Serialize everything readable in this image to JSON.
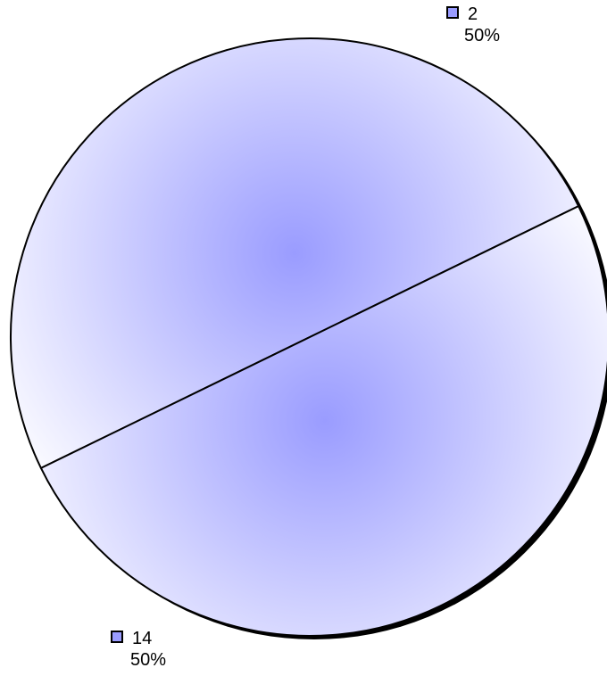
{
  "chart_data": {
    "type": "pie",
    "title": "",
    "slices": [
      {
        "label": "2",
        "value": 50,
        "percent_label": "50%",
        "color": "#9a9cff"
      },
      {
        "label": "14",
        "value": 50,
        "percent_label": "50%",
        "color": "#9a9cff"
      }
    ],
    "style": {
      "fill_center": "#9a9cff",
      "fill_edge": "#ffffff",
      "outline": "#000000",
      "shadow": "#000000"
    }
  }
}
